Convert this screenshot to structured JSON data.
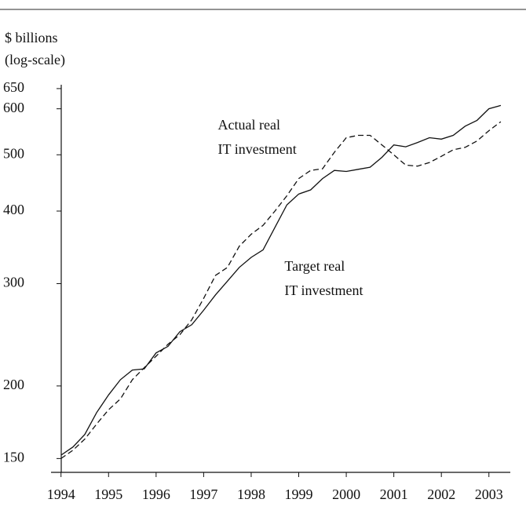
{
  "chart_data": {
    "type": "line",
    "y_axis_label": [
      "$ billions",
      "(log-scale)"
    ],
    "log_scale_y": true,
    "x": [
      1994,
      1994.25,
      1994.5,
      1994.75,
      1995,
      1995.25,
      1995.5,
      1995.75,
      1996,
      1996.25,
      1996.5,
      1996.75,
      1997,
      1997.25,
      1997.5,
      1997.75,
      1998,
      1998.25,
      1998.5,
      1998.75,
      1999,
      1999.25,
      1999.5,
      1999.75,
      2000,
      2000.25,
      2000.5,
      2000.75,
      2001,
      2001.25,
      2001.5,
      2001.75,
      2002,
      2002.25,
      2002.5,
      2002.75,
      2003,
      2003.25
    ],
    "series": [
      {
        "name": "Target real IT investment",
        "color": "#111111",
        "dash": false,
        "values": [
          152,
          157,
          165,
          180,
          193,
          205,
          213,
          214,
          228,
          234,
          248,
          255,
          270,
          287,
          303,
          320,
          333,
          343,
          375,
          410,
          428,
          435,
          455,
          470,
          468,
          472,
          476,
          495,
          520,
          516,
          525,
          535,
          532,
          540,
          560,
          573,
          600,
          608
        ]
      },
      {
        "name": "Actual real IT investment",
        "color": "#111111",
        "dash": true,
        "values": [
          150,
          155,
          162,
          172,
          182,
          190,
          205,
          215,
          225,
          236,
          245,
          260,
          283,
          310,
          320,
          348,
          365,
          378,
          400,
          425,
          455,
          470,
          473,
          505,
          535,
          540,
          540,
          520,
          500,
          480,
          478,
          485,
          497,
          510,
          515,
          528,
          550,
          570
        ]
      }
    ],
    "annotations": [
      {
        "lines": [
          "Actual real",
          "IT investment"
        ],
        "x": 1997.3,
        "y": 560
      },
      {
        "lines": [
          "Target real",
          "IT investment"
        ],
        "x": 1998.7,
        "y": 320
      }
    ],
    "xlim": [
      1993.79,
      2003.45
    ],
    "xticks": [
      1994,
      1995,
      1996,
      1997,
      1998,
      1999,
      2000,
      2001,
      2002,
      2003
    ],
    "ylim": [
      142,
      660
    ],
    "yticks": [
      150,
      200,
      300,
      400,
      500,
      600,
      650
    ]
  }
}
